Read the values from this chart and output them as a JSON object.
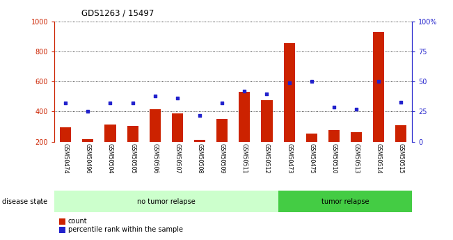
{
  "title": "GDS1263 / 15497",
  "samples": [
    "GSM50474",
    "GSM50496",
    "GSM50504",
    "GSM50505",
    "GSM50506",
    "GSM50507",
    "GSM50508",
    "GSM50509",
    "GSM50511",
    "GSM50512",
    "GSM50473",
    "GSM50475",
    "GSM50510",
    "GSM50513",
    "GSM50514",
    "GSM50515"
  ],
  "counts": [
    295,
    215,
    315,
    305,
    415,
    390,
    210,
    350,
    530,
    475,
    855,
    255,
    275,
    265,
    930,
    310
  ],
  "percentiles": [
    32,
    25,
    32,
    32,
    38,
    36,
    22,
    32,
    42,
    40,
    49,
    50,
    29,
    27,
    50,
    33
  ],
  "groups": [
    "no tumor relapse",
    "no tumor relapse",
    "no tumor relapse",
    "no tumor relapse",
    "no tumor relapse",
    "no tumor relapse",
    "no tumor relapse",
    "no tumor relapse",
    "no tumor relapse",
    "no tumor relapse",
    "tumor relapse",
    "tumor relapse",
    "tumor relapse",
    "tumor relapse",
    "tumor relapse",
    "tumor relapse"
  ],
  "bar_color": "#cc2200",
  "dot_color": "#2222cc",
  "no_relapse_color": "#ccffcc",
  "relapse_color": "#44cc44",
  "tick_bg_color": "#c8c8c8",
  "ylim_left": [
    200,
    1000
  ],
  "ylim_right": [
    0,
    100
  ],
  "yticks_left": [
    200,
    400,
    600,
    800,
    1000
  ],
  "yticks_right": [
    0,
    25,
    50,
    75,
    100
  ],
  "ytick_right_labels": [
    "0",
    "25",
    "50",
    "75",
    "100%"
  ],
  "legend_count": "count",
  "legend_pct": "percentile rank within the sample",
  "disease_label": "disease state"
}
